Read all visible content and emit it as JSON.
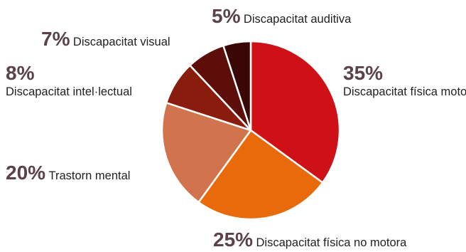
{
  "chart_data": {
    "type": "pie",
    "start_angle_deg": 0,
    "direction": "clockwise",
    "slices": [
      {
        "name": "Discapacitat física motora",
        "value": 35,
        "label": "35%",
        "color": "#cf1017"
      },
      {
        "name": "Discapacitat física no motora",
        "value": 25,
        "label": "25%",
        "color": "#e86a0b"
      },
      {
        "name": "Trastorn mental",
        "value": 20,
        "label": "20%",
        "color": "#d1734c"
      },
      {
        "name": "Discapacitat intel·lectual",
        "value": 8,
        "label": "8%",
        "color": "#8a1c0d"
      },
      {
        "name": "Discapacitat visual",
        "value": 7,
        "label": "7%",
        "color": "#5e0e09"
      },
      {
        "name": "Discapacitat auditiva",
        "value": 5,
        "label": "5%",
        "color": "#3a0606"
      }
    ],
    "label_color": "#5b4248"
  },
  "labels": {
    "fisica_motora": {
      "pct": "35%",
      "text": "Discapacitat física motora"
    },
    "fisica_no_motora": {
      "pct": "25%",
      "text": "Discapacitat física no motora"
    },
    "mental": {
      "pct": "20%",
      "text": "Trastorn mental"
    },
    "intel": {
      "pct": "8%",
      "text": "Discapacitat intel·lectual"
    },
    "visual": {
      "pct": "7%",
      "text": "Discapacitat visual"
    },
    "auditiva": {
      "pct": "5%",
      "text": "Discapacitat auditiva"
    }
  }
}
